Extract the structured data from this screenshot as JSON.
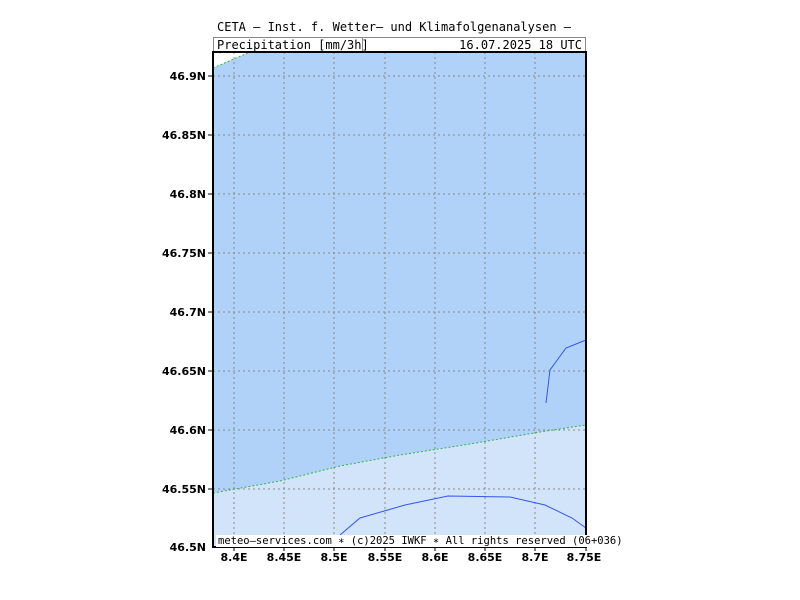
{
  "header": {
    "title": "CETA — Inst. f. Wetter— und Klimafolgenanalysen —",
    "variable": "Precipitation [mm/3h]",
    "valid_time": "16.07.2025 18 UTC"
  },
  "map": {
    "lat_range": [
      46.5,
      46.93
    ],
    "lon_range": [
      8.38,
      8.75
    ],
    "lat_ticks": [
      "46.9N",
      "46.85N",
      "46.8N",
      "46.75N",
      "46.7N",
      "46.65N",
      "46.6N",
      "46.55N",
      "46.5N"
    ],
    "lon_ticks": [
      "8.4E",
      "8.45E",
      "8.5E",
      "8.55E",
      "8.6E",
      "8.65E",
      "8.7E",
      "8.75E"
    ],
    "colors": {
      "dark_fill": "#b0d2f8",
      "light_fill": "#d2e4fa",
      "contour_dotted": "#33b34d",
      "river_line": "#3355ee",
      "grid": "#888888"
    }
  },
  "footer": {
    "credit": "meteo—services.com ∗ (c)2025 IWKF ∗ All rights reserved (06+036)"
  }
}
